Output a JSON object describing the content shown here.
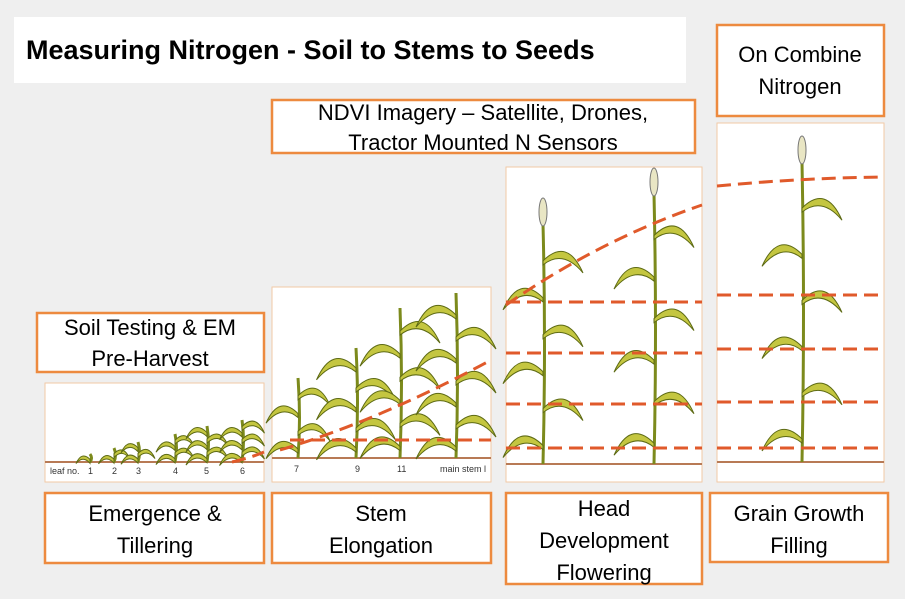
{
  "title": "Measuring Nitrogen - Soil to Stems to Seeds",
  "top_boxes": [
    {
      "lines": [
        "On Combine",
        "Nitrogen"
      ]
    },
    {
      "lines": [
        "NDVI Imagery – Satellite, Drones,",
        "Tractor Mounted N Sensors"
      ]
    },
    {
      "lines": [
        "Soil Testing & EM",
        "Pre-Harvest"
      ]
    }
  ],
  "stages": [
    {
      "lines": [
        "Emergence &",
        "Tillering"
      ]
    },
    {
      "lines": [
        "Stem",
        "Elongation"
      ]
    },
    {
      "lines": [
        "Head",
        "Development",
        "Flowering"
      ]
    },
    {
      "lines": [
        "Grain Growth",
        "Filling"
      ]
    }
  ],
  "panel_labels": {
    "leaf_stage": [
      "leaf no.",
      "1",
      "2",
      "3",
      "4",
      "5",
      "6"
    ],
    "stem_stage": [
      "7",
      "9",
      "11",
      "main stem l"
    ]
  }
}
